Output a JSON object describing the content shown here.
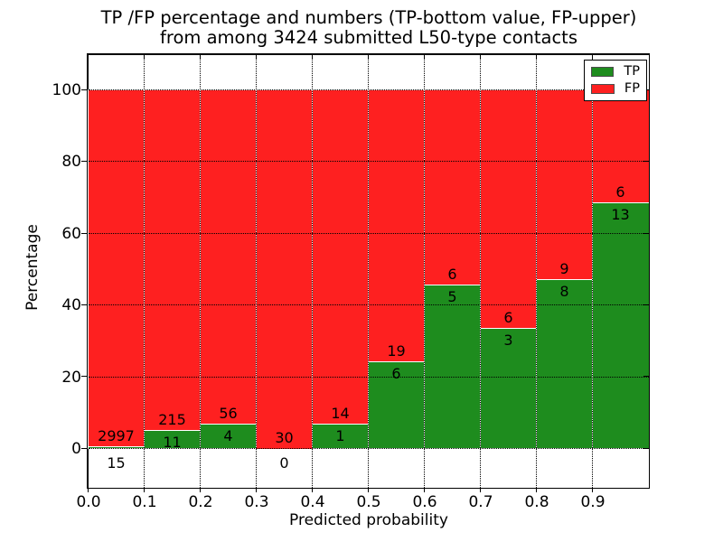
{
  "title": {
    "line1": "TP /FP percentage and numbers (TP-bottom value, FP-upper)",
    "line2": "from among 3424 submitted L50-type contacts"
  },
  "axes": {
    "x_label": "Predicted probability",
    "y_label": "Percentage",
    "x_tick_labels": [
      "0.0",
      "0.1",
      "0.2",
      "0.3",
      "0.4",
      "0.5",
      "0.6",
      "0.7",
      "0.8",
      "0.9"
    ],
    "y_tick_labels": [
      "0",
      "20",
      "40",
      "60",
      "80",
      "100"
    ],
    "y_tick_values": [
      0,
      20,
      40,
      60,
      80,
      100
    ]
  },
  "legend": {
    "items": [
      {
        "label": "TP",
        "color": "#1e8c1e"
      },
      {
        "label": "FP",
        "color": "#fe2020"
      }
    ]
  },
  "colors": {
    "tp": "#1e8c1e",
    "fp": "#fe2020",
    "bar_edge": "#ffffff",
    "grid": "#000000",
    "background": "#ffffff"
  },
  "chart_data": {
    "type": "bar",
    "stacked": true,
    "normalized": "percent-of-bin",
    "title": "TP /FP percentage and numbers (TP-bottom value, FP-upper) from among 3424 submitted L50-type contacts",
    "xlabel": "Predicted probability",
    "ylabel": "Percentage",
    "total_contacts": 3424,
    "x_bin_edges": [
      0.0,
      0.1,
      0.2,
      0.3,
      0.4,
      0.5,
      0.6,
      0.7,
      0.8,
      0.9,
      1.0
    ],
    "series": [
      {
        "name": "TP",
        "color": "#1e8c1e",
        "counts": [
          15,
          11,
          4,
          0,
          1,
          6,
          5,
          3,
          8,
          13
        ]
      },
      {
        "name": "FP",
        "color": "#fe2020",
        "counts": [
          2997,
          215,
          56,
          30,
          14,
          19,
          6,
          6,
          9,
          6
        ]
      }
    ],
    "tp_percent_per_bin": [
      0.5,
      4.87,
      6.67,
      0.0,
      6.67,
      24.0,
      45.45,
      33.33,
      47.06,
      68.42
    ],
    "ylim": [
      -10.8,
      110.0
    ],
    "grid": true,
    "grid_style": "dotted",
    "legend_position": "upper right"
  }
}
